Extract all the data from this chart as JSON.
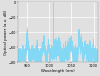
{
  "title": "",
  "xlabel": "Wavelength (nm)",
  "ylabel": "Optical power (a.u. dB)",
  "xlim": [
    930,
    1110
  ],
  "ylim": [
    -80,
    0
  ],
  "yticks": [
    -80,
    -60,
    -40,
    -20,
    0
  ],
  "xticks": [
    950,
    1000,
    1050,
    1100
  ],
  "peak_wavelength": 1010,
  "noise_floor": -72,
  "noise_amplitude": 5,
  "line_color": "#82d8f5",
  "background_color": "#e0e0e0",
  "grid_color": "#ffffff",
  "figsize": [
    1.0,
    0.76
  ],
  "dpi": 100
}
